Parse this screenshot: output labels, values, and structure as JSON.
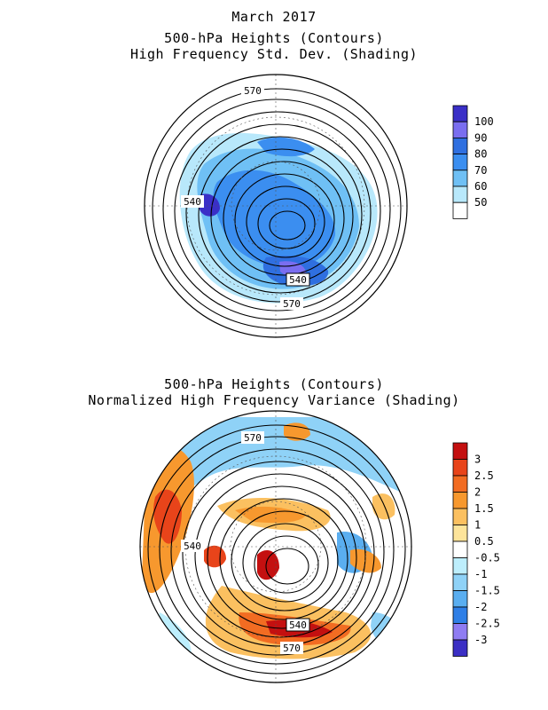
{
  "top_panel": {
    "title_lines": [
      "March 2017",
      "500-hPa Heights (Contours)",
      "High Frequency Std. Dev. (Shading)"
    ],
    "contour_labels": [
      "570",
      "540",
      "540",
      "570"
    ],
    "colorbar": {
      "labels": [
        "100",
        "90",
        "80",
        "70",
        "60",
        "50"
      ],
      "colors": [
        "#3a2fc7",
        "#7a6ef0",
        "#2f6fe0",
        "#3b8ef0",
        "#6fc0f5",
        "#b8e8fb",
        "#ffffff"
      ]
    }
  },
  "bottom_panel": {
    "title_lines": [
      "500-hPa Heights (Contours)",
      "Normalized High Frequency Variance (Shading)"
    ],
    "contour_labels": [
      "570",
      "540",
      "540",
      "570"
    ],
    "colorbar": {
      "labels": [
        "3",
        "2.5",
        "2",
        "1.5",
        "1",
        "0.5",
        "-0.5",
        "-1",
        "-1.5",
        "-2",
        "-2.5",
        "-3"
      ],
      "colors": [
        "#c41010",
        "#e8441a",
        "#f26c22",
        "#f7982e",
        "#fbc060",
        "#fde49a",
        "#ffffff",
        "#bdeefc",
        "#8fd2f7",
        "#5aaef0",
        "#2f7fe6",
        "#8f7cf2",
        "#3b2fc4"
      ]
    }
  }
}
